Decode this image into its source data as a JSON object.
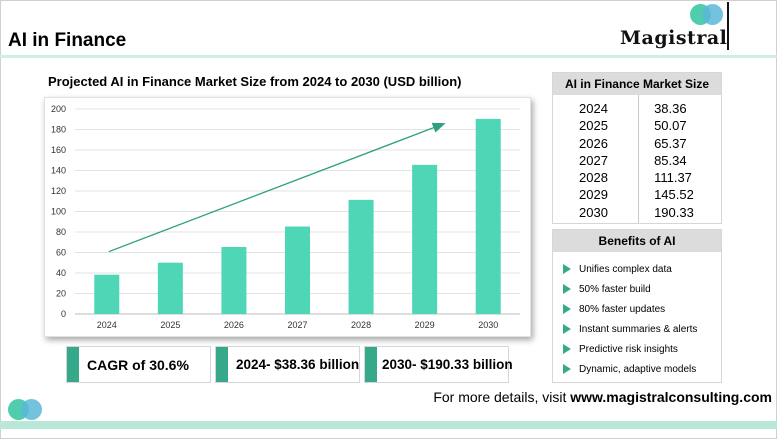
{
  "header": {
    "title": "AI in Finance",
    "logo_text": "Magistral",
    "logo_colors": [
      "#3cc8a3",
      "#5ab7d8"
    ]
  },
  "chart_title": "Projected AI in Finance Market Size from 2024 to 2030 (USD billion)",
  "chart_data": {
    "type": "bar",
    "categories": [
      "2024",
      "2025",
      "2026",
      "2027",
      "2028",
      "2029",
      "2030"
    ],
    "values": [
      38.36,
      50.07,
      65.37,
      85.34,
      111.37,
      145.52,
      190.33
    ],
    "ylim": [
      0,
      200
    ],
    "yticks": [
      0,
      20,
      40,
      60,
      80,
      100,
      120,
      140,
      160,
      180,
      200
    ],
    "bar_color": "#4fd6b6",
    "trend_arrow_color": "#2e9f80",
    "grid": true,
    "legend": false
  },
  "stats": [
    {
      "label": "CAGR of 30.6%"
    },
    {
      "label": "2024- $38.36 billion"
    },
    {
      "label": "2030- $190.33 billion"
    }
  ],
  "market_table": {
    "header": "AI in Finance Market Size",
    "rows": [
      {
        "year": "2024",
        "value": "38.36"
      },
      {
        "year": "2025",
        "value": "50.07"
      },
      {
        "year": "2026",
        "value": "65.37"
      },
      {
        "year": "2027",
        "value": "85.34"
      },
      {
        "year": "2028",
        "value": "111.37"
      },
      {
        "year": "2029",
        "value": "145.52"
      },
      {
        "year": "2030",
        "value": "190.33"
      }
    ]
  },
  "benefits": {
    "header": "Benefits of AI",
    "items": [
      "Unifies complex data",
      "50% faster build",
      "80% faster updates",
      "Instant summaries & alerts",
      "Predictive risk insights",
      "Dynamic, adaptive models"
    ]
  },
  "footer": {
    "prefix": "For more details, visit ",
    "url": "www.magistralconsulting.com"
  },
  "accent_color": "#36a98a"
}
